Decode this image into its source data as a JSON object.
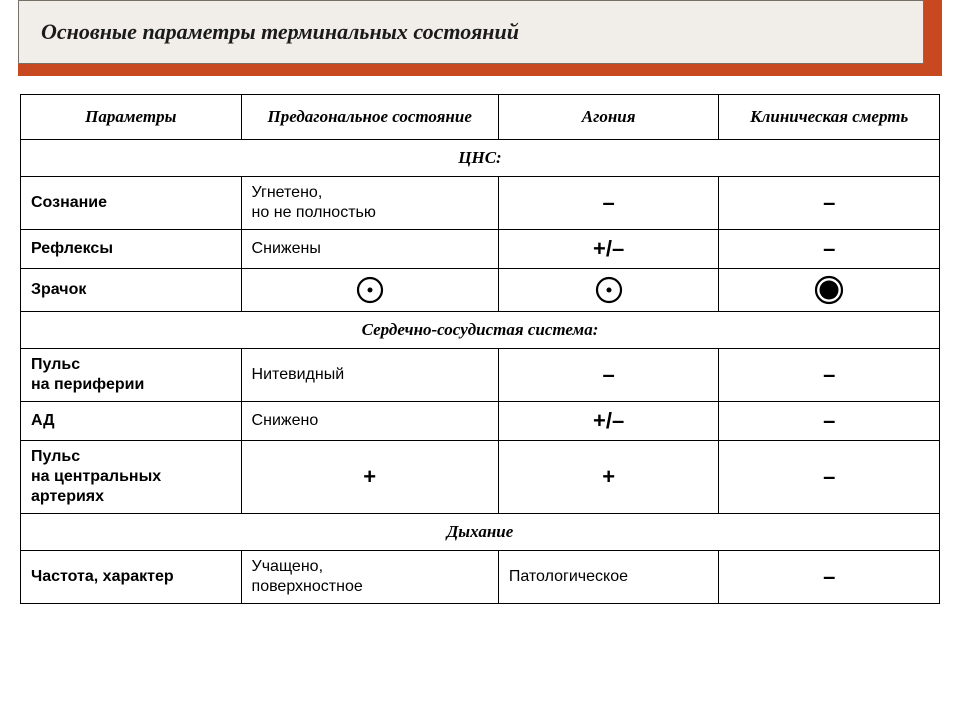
{
  "title": "Основные параметры терминальных состояний",
  "banner_bg": "#c8491f",
  "title_card_bg": "#f1eee9",
  "headers": {
    "c1": "Параметры",
    "c2": "Предагональное состояние",
    "c3": "Агония",
    "c4": "Клиническая смерть"
  },
  "sections": {
    "cns": "ЦНС:",
    "cvs": "Сердечно-сосудистая система:",
    "resp": "Дыхание"
  },
  "rows": {
    "consciousness": {
      "param": "Сознание",
      "preagonal": "Угнетено,\nно не полностью",
      "agony": "–",
      "clinical": "–"
    },
    "reflexes": {
      "param": "Рефлексы",
      "preagonal": "Снижены",
      "agony": "+/–",
      "clinical": "–"
    },
    "pupil": {
      "param": "Зрачок",
      "preagonal_icon": "pupil-small",
      "agony_icon": "pupil-small",
      "clinical_icon": "pupil-large"
    },
    "pulse_periph": {
      "param": "Пульс\nна периферии",
      "preagonal": "Нитевидный",
      "agony": "–",
      "clinical": "–"
    },
    "bp": {
      "param": "АД",
      "preagonal": "Снижено",
      "agony": "+/–",
      "clinical": "–"
    },
    "pulse_central": {
      "param": "Пульс\nна центральных\nартериях",
      "preagonal": "+",
      "agony": "+",
      "clinical": "–"
    },
    "breathing": {
      "param": "Частота, характер",
      "preagonal": "Учащено,\nповерхностное",
      "agony": "Патологическое",
      "clinical": "–"
    }
  },
  "icons": {
    "pupil-small": {
      "outer_r": 12,
      "inner_r": 2.5,
      "stroke": "#000",
      "fill": "#000"
    },
    "pupil-large": {
      "outer_r": 13,
      "inner_r": 9.5,
      "stroke": "#000",
      "fill": "#000",
      "ring": true
    }
  }
}
